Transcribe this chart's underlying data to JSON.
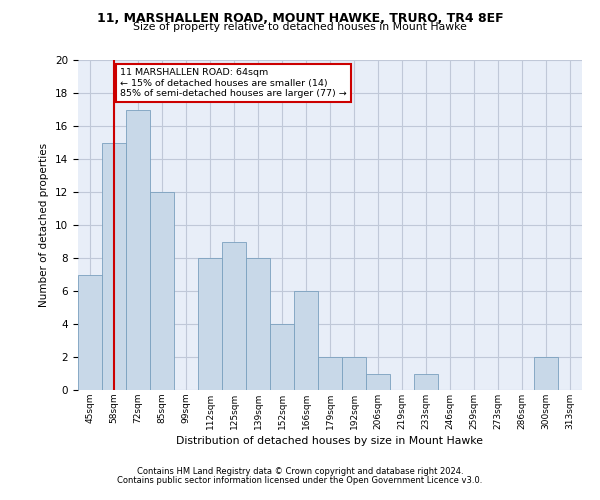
{
  "title1": "11, MARSHALLEN ROAD, MOUNT HAWKE, TRURO, TR4 8EF",
  "title2": "Size of property relative to detached houses in Mount Hawke",
  "xlabel": "Distribution of detached houses by size in Mount Hawke",
  "ylabel": "Number of detached properties",
  "categories": [
    "45sqm",
    "58sqm",
    "72sqm",
    "85sqm",
    "99sqm",
    "112sqm",
    "125sqm",
    "139sqm",
    "152sqm",
    "166sqm",
    "179sqm",
    "192sqm",
    "206sqm",
    "219sqm",
    "233sqm",
    "246sqm",
    "259sqm",
    "273sqm",
    "286sqm",
    "300sqm",
    "313sqm"
  ],
  "values": [
    7,
    15,
    17,
    12,
    0,
    8,
    9,
    8,
    4,
    6,
    2,
    2,
    1,
    0,
    1,
    0,
    0,
    0,
    0,
    2,
    0
  ],
  "bar_color": "#c8d8e8",
  "bar_edge_color": "#7aa0be",
  "vline_x": 1,
  "vline_color": "#cc0000",
  "annotation_text": "11 MARSHALLEN ROAD: 64sqm\n← 15% of detached houses are smaller (14)\n85% of semi-detached houses are larger (77) →",
  "annotation_box_color": "#ffffff",
  "annotation_box_edge": "#cc0000",
  "ylim": [
    0,
    20
  ],
  "yticks": [
    0,
    2,
    4,
    6,
    8,
    10,
    12,
    14,
    16,
    18,
    20
  ],
  "grid_color": "#c0c8d8",
  "background_color": "#e8eef8",
  "footer1": "Contains HM Land Registry data © Crown copyright and database right 2024.",
  "footer2": "Contains public sector information licensed under the Open Government Licence v3.0."
}
